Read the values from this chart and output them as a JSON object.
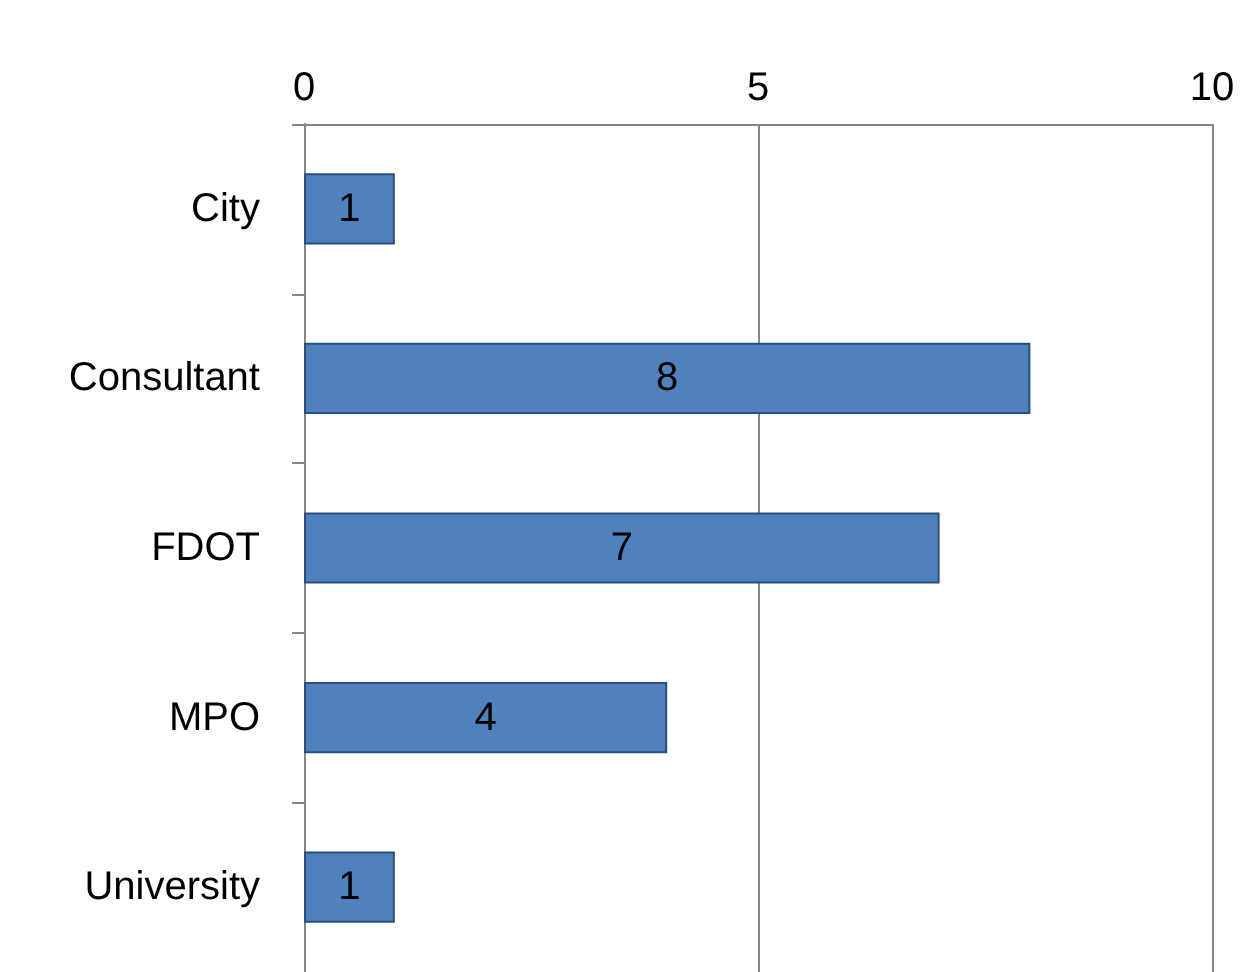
{
  "chart_data": {
    "type": "bar",
    "orientation": "horizontal",
    "categories": [
      "City",
      "Consultant",
      "FDOT",
      "MPO",
      "University"
    ],
    "values": [
      1,
      8,
      7,
      4,
      1
    ],
    "color": "#4f81bd",
    "xlim": [
      0,
      10
    ],
    "xticks": [
      0,
      5,
      10
    ],
    "grid": "x",
    "data_labels": true
  }
}
